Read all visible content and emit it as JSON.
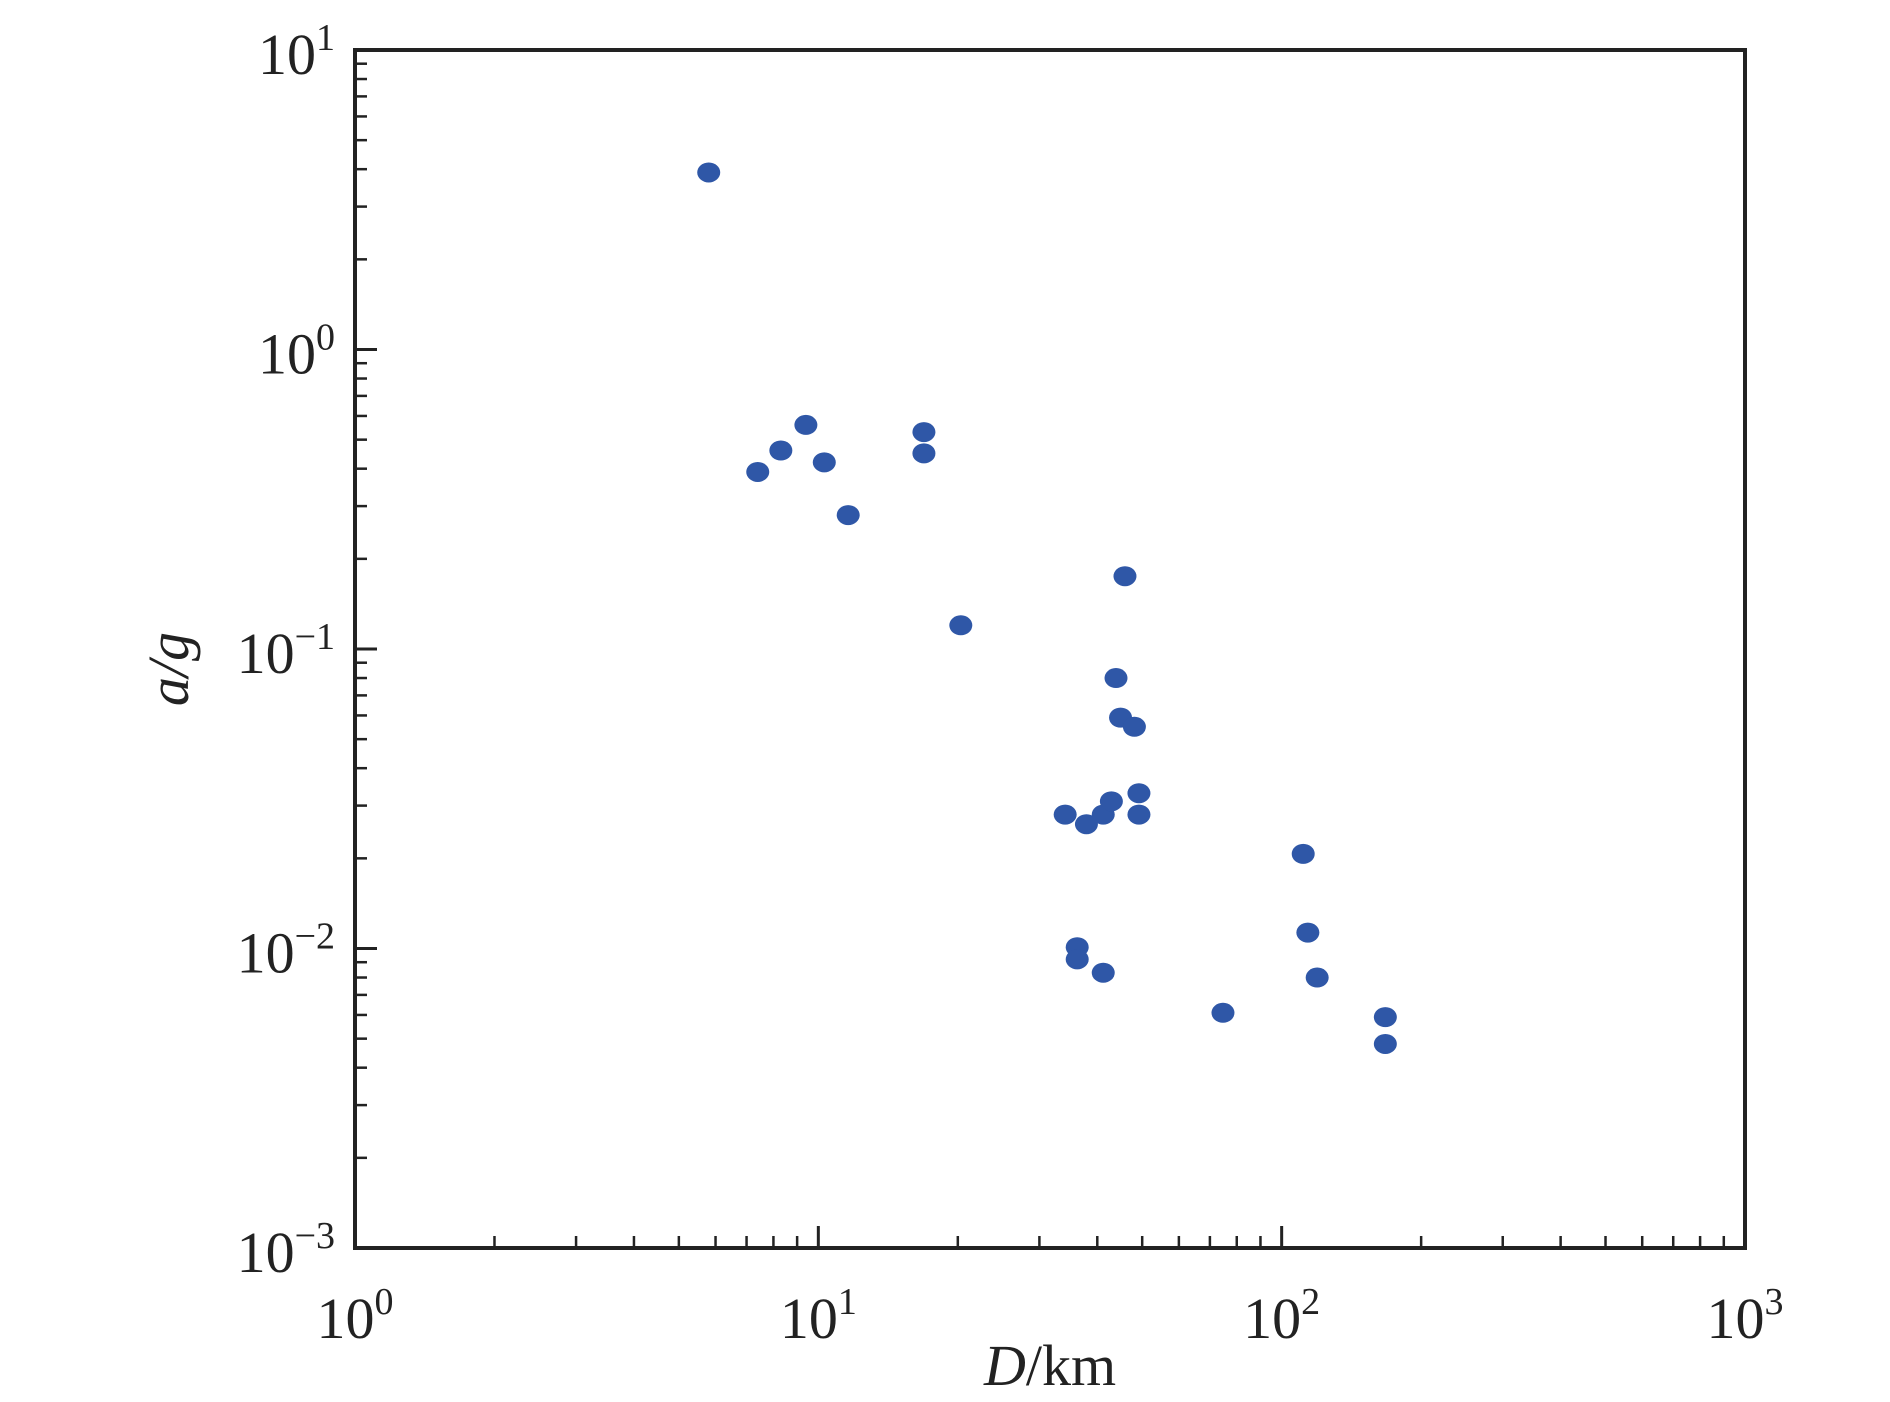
{
  "chart_data": {
    "type": "scatter",
    "title": "",
    "xlabel": {
      "var": "D",
      "unit": "/km"
    },
    "ylabel": {
      "var": "a/g"
    },
    "xscale": "log",
    "yscale": "log",
    "xlim": [
      1,
      1000
    ],
    "ylim": [
      0.001,
      10
    ],
    "grid": false,
    "marker_color": "#2f57a7",
    "x_ticks": [
      {
        "base": "10",
        "exp": "0"
      },
      {
        "base": "10",
        "exp": "1"
      },
      {
        "base": "10",
        "exp": "2"
      },
      {
        "base": "10",
        "exp": "3"
      }
    ],
    "y_ticks": [
      {
        "base": "10",
        "exp": "1"
      },
      {
        "base": "10",
        "exp": "0"
      },
      {
        "base": "10",
        "exp": "−1"
      },
      {
        "base": "10",
        "exp": "−2"
      },
      {
        "base": "10",
        "exp": "−3"
      }
    ],
    "points": [
      {
        "x": 5.8,
        "y": 3.9
      },
      {
        "x": 7.4,
        "y": 0.39
      },
      {
        "x": 8.3,
        "y": 0.46
      },
      {
        "x": 9.4,
        "y": 0.56
      },
      {
        "x": 10.3,
        "y": 0.42
      },
      {
        "x": 11.6,
        "y": 0.28
      },
      {
        "x": 16.9,
        "y": 0.53
      },
      {
        "x": 16.9,
        "y": 0.45
      },
      {
        "x": 20.3,
        "y": 0.12
      },
      {
        "x": 34.1,
        "y": 0.028
      },
      {
        "x": 36.2,
        "y": 0.0101
      },
      {
        "x": 36.2,
        "y": 0.0092
      },
      {
        "x": 37.9,
        "y": 0.026
      },
      {
        "x": 41.2,
        "y": 0.028
      },
      {
        "x": 41.2,
        "y": 0.0083
      },
      {
        "x": 42.9,
        "y": 0.031
      },
      {
        "x": 43.9,
        "y": 0.08
      },
      {
        "x": 44.9,
        "y": 0.059
      },
      {
        "x": 45.9,
        "y": 0.175
      },
      {
        "x": 48.1,
        "y": 0.055
      },
      {
        "x": 49.2,
        "y": 0.033
      },
      {
        "x": 49.2,
        "y": 0.028
      },
      {
        "x": 74.7,
        "y": 0.0061
      },
      {
        "x": 111.3,
        "y": 0.0207
      },
      {
        "x": 113.9,
        "y": 0.0113
      },
      {
        "x": 119.3,
        "y": 0.008
      },
      {
        "x": 167.4,
        "y": 0.0059
      },
      {
        "x": 167.4,
        "y": 0.0048
      }
    ]
  }
}
